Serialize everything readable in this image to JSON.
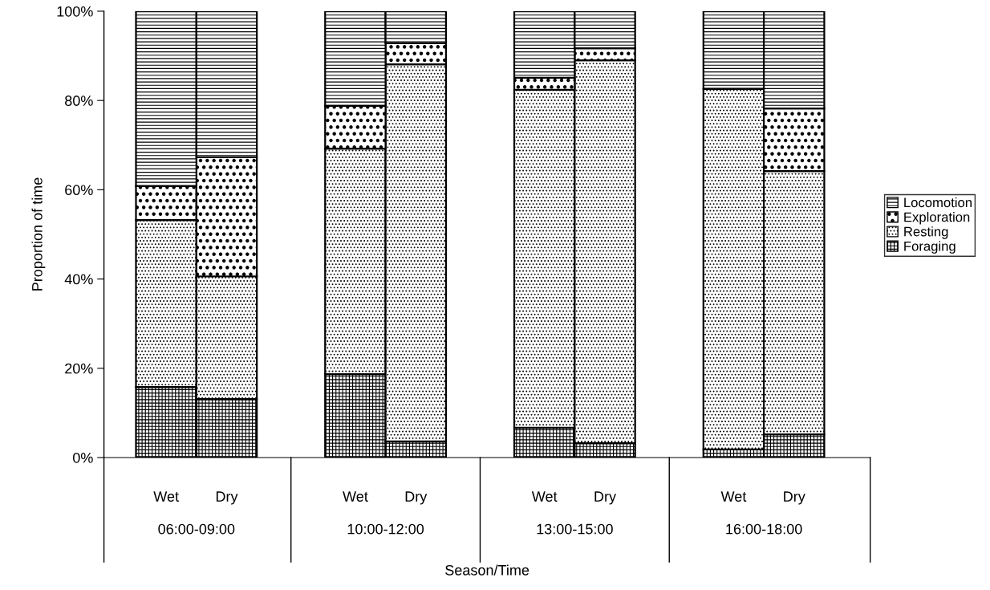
{
  "chart_data": {
    "type": "bar",
    "stacked": true,
    "xlabel": "Season/Time",
    "ylabel": "Proportion of time",
    "categories": [
      "Wet",
      "Dry",
      "Wet",
      "Dry",
      "Wet",
      "Dry",
      "Wet",
      "Dry"
    ],
    "annotations": [
      "06:00-09:00",
      "10:00-12:00",
      "13:00-15:00",
      "16:00-18:00"
    ],
    "series": [
      {
        "name": "Foraging",
        "color": "#000000",
        "values": [
          15.8,
          13.1,
          18.7,
          3.6,
          6.7,
          3.2,
          1.8,
          5.2
        ]
      },
      {
        "name": "Resting",
        "color": "#000000",
        "values": [
          37.4,
          27.5,
          50.5,
          84.5,
          75.7,
          85.8,
          80.8,
          59.0
        ]
      },
      {
        "name": "Exploration",
        "color": "#000000",
        "values": [
          7.6,
          26.7,
          9.6,
          4.7,
          2.7,
          2.7,
          0,
          14.0
        ]
      },
      {
        "name": "Locomotion",
        "color": "#000000",
        "values": [
          39.2,
          32.7,
          21.2,
          7.2,
          14.9,
          8.3,
          17.4,
          21.8
        ]
      }
    ],
    "ylim": [
      0,
      100
    ],
    "yticks": [
      {
        "value": 0,
        "label": "0%"
      },
      {
        "value": 20,
        "label": "20%"
      },
      {
        "value": 40,
        "label": "40%"
      },
      {
        "value": 60,
        "label": "60%"
      },
      {
        "value": 80,
        "label": "80%"
      },
      {
        "value": 100,
        "label": "100%"
      }
    ],
    "legend": "right",
    "grid": false
  }
}
